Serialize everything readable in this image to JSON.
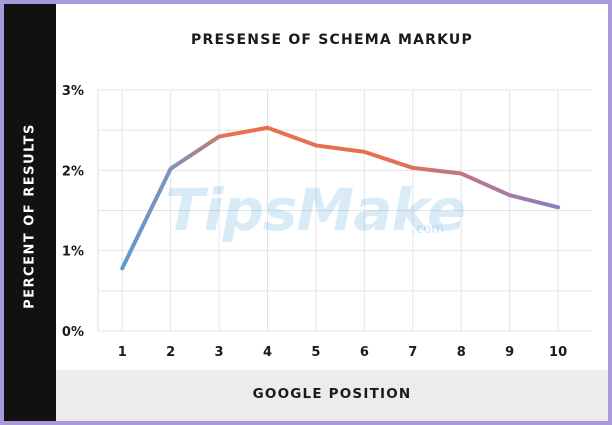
{
  "chart_data": {
    "type": "line",
    "title": "PRESENSE OF SCHEMA MARKUP",
    "xlabel": "GOOGLE POSITION",
    "ylabel": "PERCENT OF RESULTS",
    "x": [
      1,
      2,
      3,
      4,
      5,
      6,
      7,
      8,
      9,
      10
    ],
    "x_tick_labels": [
      "1",
      "2",
      "3",
      "4",
      "5",
      "6",
      "7",
      "8",
      "9",
      "10"
    ],
    "y_ticks": [
      0,
      1,
      2,
      3
    ],
    "y_tick_labels": [
      "0%",
      "1%",
      "2%",
      "3%"
    ],
    "ylim": [
      0,
      3
    ],
    "series": [
      {
        "values": [
          0.78,
          2.02,
          2.42,
          2.53,
          2.31,
          2.23,
          2.03,
          1.96,
          1.69,
          1.54
        ]
      }
    ],
    "grid": true,
    "colors": {
      "line_start": "#5b9bd5",
      "line_mid": "#e8704f",
      "line_end": "#8a7fc4"
    }
  },
  "watermark": {
    "main": "TipsMake",
    "sub": ".com"
  }
}
